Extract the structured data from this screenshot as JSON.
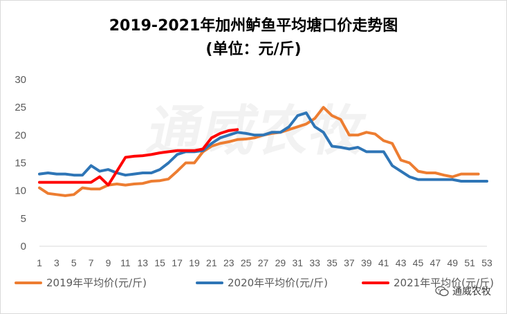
{
  "chart_data": {
    "type": "line",
    "title": "2019-2021年加州鲈鱼平均塘口价走势图",
    "subtitle": "(单位：元/斤)",
    "watermark": "通威农牧",
    "brand": "通威农牧",
    "ylim": [
      0,
      30
    ],
    "yticks": [
      0,
      5,
      10,
      15,
      20,
      25,
      30
    ],
    "xlim": [
      1,
      53
    ],
    "xticks": [
      1,
      3,
      5,
      7,
      9,
      11,
      13,
      15,
      17,
      19,
      21,
      23,
      25,
      27,
      29,
      31,
      33,
      35,
      37,
      39,
      41,
      43,
      45,
      47,
      49,
      51,
      53
    ],
    "grid": false,
    "legend_position": "bottom",
    "series": [
      {
        "name": "2019年平均价(元/斤)",
        "color": "#ED7D31",
        "x": [
          1,
          2,
          3,
          4,
          5,
          6,
          7,
          8,
          9,
          10,
          11,
          12,
          13,
          14,
          15,
          16,
          17,
          18,
          19,
          20,
          21,
          22,
          23,
          24,
          25,
          26,
          27,
          28,
          29,
          30,
          31,
          32,
          33,
          34,
          35,
          36,
          37,
          38,
          39,
          40,
          41,
          42,
          43,
          44,
          45,
          46,
          47,
          48,
          49,
          50,
          51,
          52
        ],
        "values": [
          10.5,
          9.5,
          9.3,
          9.1,
          9.3,
          10.5,
          10.3,
          10.3,
          11.0,
          11.2,
          11.0,
          11.2,
          11.3,
          11.7,
          11.8,
          12.1,
          13.5,
          15.0,
          15.0,
          17.0,
          18.0,
          18.5,
          18.8,
          19.2,
          19.3,
          19.5,
          20.0,
          20.3,
          20.5,
          21.0,
          21.5,
          22.0,
          23.0,
          25.0,
          23.5,
          22.8,
          20.0,
          20.0,
          20.5,
          20.2,
          19.0,
          18.5,
          15.5,
          15.0,
          13.5,
          13.2,
          13.2,
          12.8,
          12.5,
          13.0,
          13.0,
          13.0
        ]
      },
      {
        "name": "2020年平均价(元/斤)",
        "color": "#2E75B6",
        "x": [
          1,
          2,
          3,
          4,
          5,
          6,
          7,
          8,
          9,
          10,
          11,
          12,
          13,
          14,
          15,
          16,
          17,
          18,
          19,
          20,
          21,
          22,
          23,
          24,
          25,
          26,
          27,
          28,
          29,
          30,
          31,
          32,
          33,
          34,
          35,
          36,
          37,
          38,
          39,
          40,
          41,
          42,
          43,
          44,
          45,
          46,
          47,
          48,
          49,
          50,
          51,
          52,
          53
        ],
        "values": [
          13.0,
          13.2,
          13.0,
          13.0,
          12.8,
          12.8,
          14.5,
          13.5,
          13.8,
          13.2,
          12.8,
          13.0,
          13.2,
          13.2,
          13.8,
          15.0,
          16.5,
          17.0,
          17.0,
          17.2,
          18.5,
          19.5,
          20.0,
          20.5,
          20.3,
          20.0,
          20.0,
          20.5,
          20.5,
          21.5,
          23.5,
          24.0,
          21.5,
          20.5,
          18.0,
          17.8,
          17.5,
          17.8,
          17.0,
          17.0,
          17.0,
          14.5,
          13.5,
          12.5,
          12.0,
          12.0,
          12.0,
          12.0,
          12.0,
          11.7,
          11.7,
          11.7,
          11.7
        ]
      },
      {
        "name": "2021年平均价(元/斤)",
        "color": "#FF0000",
        "x": [
          1,
          2,
          3,
          4,
          5,
          6,
          7,
          8,
          9,
          10,
          11,
          12,
          13,
          14,
          15,
          16,
          17,
          18,
          19,
          20,
          21,
          22,
          23,
          24
        ],
        "values": [
          11.5,
          11.5,
          11.5,
          11.5,
          11.5,
          11.5,
          11.5,
          12.5,
          11.0,
          13.5,
          16.0,
          16.2,
          16.3,
          16.5,
          16.8,
          17.0,
          17.2,
          17.2,
          17.2,
          17.5,
          19.5,
          20.3,
          20.8,
          21.0
        ]
      }
    ]
  }
}
